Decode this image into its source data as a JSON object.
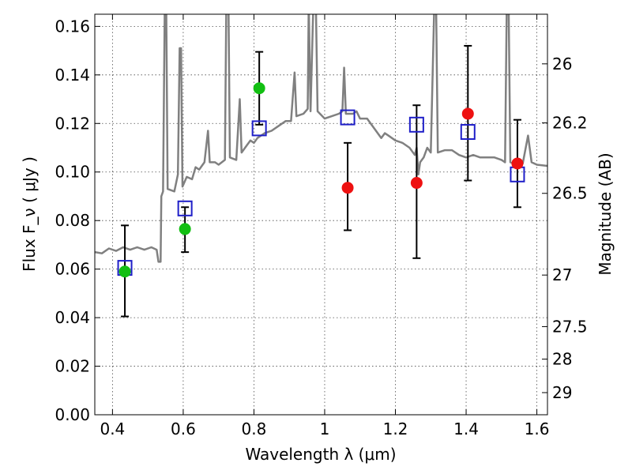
{
  "chart_data": {
    "type": "scatter",
    "xlabel": "Wavelength  λ (μm)",
    "ylabel": "Flux  F_ν  ( μJy )",
    "ylabel_right": "Magnitude (AB)",
    "xlim": [
      0.35,
      1.63
    ],
    "ylim": [
      0.0,
      0.165
    ],
    "grid": true,
    "x_ticks": [
      {
        "value": 0.4,
        "label": "0.4"
      },
      {
        "value": 0.6,
        "label": "0.6"
      },
      {
        "value": 0.8,
        "label": "0.8"
      },
      {
        "value": 1.0,
        "label": "1"
      },
      {
        "value": 1.2,
        "label": "1.2"
      },
      {
        "value": 1.4,
        "label": "1.4"
      },
      {
        "value": 1.6,
        "label": "1.6"
      }
    ],
    "y_ticks": [
      {
        "value": 0.0,
        "label": "0.00"
      },
      {
        "value": 0.02,
        "label": "0.02"
      },
      {
        "value": 0.04,
        "label": "0.04"
      },
      {
        "value": 0.06,
        "label": "0.06"
      },
      {
        "value": 0.08,
        "label": "0.08"
      },
      {
        "value": 0.1,
        "label": "0.10"
      },
      {
        "value": 0.12,
        "label": "0.12"
      },
      {
        "value": 0.14,
        "label": "0.14"
      },
      {
        "value": 0.16,
        "label": "0.16"
      }
    ],
    "right_ticks": [
      {
        "mag": 26,
        "label": "26"
      },
      {
        "mag": 26.2,
        "label": "26.2"
      },
      {
        "mag": 26.5,
        "label": "26.5"
      },
      {
        "mag": 27,
        "label": "27"
      },
      {
        "mag": 27.5,
        "label": "27.5"
      },
      {
        "mag": 28,
        "label": "28"
      },
      {
        "mag": 29,
        "label": "29"
      }
    ],
    "series": [
      {
        "role": "model-sed",
        "type": "line",
        "color": "#808080",
        "points": [
          [
            0.35,
            0.067
          ],
          [
            0.37,
            0.0665
          ],
          [
            0.39,
            0.0685
          ],
          [
            0.41,
            0.0675
          ],
          [
            0.43,
            0.069
          ],
          [
            0.45,
            0.068
          ],
          [
            0.47,
            0.069
          ],
          [
            0.49,
            0.068
          ],
          [
            0.51,
            0.069
          ],
          [
            0.525,
            0.068
          ],
          [
            0.53,
            0.063
          ],
          [
            0.536,
            0.063
          ],
          [
            0.538,
            0.09
          ],
          [
            0.543,
            0.092
          ],
          [
            0.548,
            0.17
          ],
          [
            0.552,
            0.17
          ],
          [
            0.556,
            0.093
          ],
          [
            0.575,
            0.092
          ],
          [
            0.585,
            0.099
          ],
          [
            0.59,
            0.151
          ],
          [
            0.594,
            0.151
          ],
          [
            0.598,
            0.094
          ],
          [
            0.61,
            0.098
          ],
          [
            0.625,
            0.097
          ],
          [
            0.635,
            0.102
          ],
          [
            0.645,
            0.101
          ],
          [
            0.66,
            0.104
          ],
          [
            0.67,
            0.117
          ],
          [
            0.675,
            0.104
          ],
          [
            0.69,
            0.104
          ],
          [
            0.7,
            0.103
          ],
          [
            0.718,
            0.105
          ],
          [
            0.722,
            0.17
          ],
          [
            0.728,
            0.17
          ],
          [
            0.732,
            0.106
          ],
          [
            0.75,
            0.105
          ],
          [
            0.76,
            0.13
          ],
          [
            0.765,
            0.108
          ],
          [
            0.78,
            0.111
          ],
          [
            0.79,
            0.113
          ],
          [
            0.8,
            0.112
          ],
          [
            0.81,
            0.114
          ],
          [
            0.83,
            0.116
          ],
          [
            0.85,
            0.117
          ],
          [
            0.87,
            0.119
          ],
          [
            0.89,
            0.121
          ],
          [
            0.905,
            0.121
          ],
          [
            0.915,
            0.141
          ],
          [
            0.92,
            0.123
          ],
          [
            0.94,
            0.124
          ],
          [
            0.952,
            0.126
          ],
          [
            0.955,
            0.17
          ],
          [
            0.96,
            0.125
          ],
          [
            0.968,
            0.17
          ],
          [
            0.975,
            0.17
          ],
          [
            0.98,
            0.125
          ],
          [
            1.0,
            0.122
          ],
          [
            1.02,
            0.123
          ],
          [
            1.04,
            0.124
          ],
          [
            1.05,
            0.125
          ],
          [
            1.055,
            0.143
          ],
          [
            1.06,
            0.124
          ],
          [
            1.08,
            0.124
          ],
          [
            1.09,
            0.125
          ],
          [
            1.1,
            0.122
          ],
          [
            1.12,
            0.122
          ],
          [
            1.14,
            0.118
          ],
          [
            1.16,
            0.114
          ],
          [
            1.17,
            0.116
          ],
          [
            1.18,
            0.115
          ],
          [
            1.2,
            0.113
          ],
          [
            1.22,
            0.112
          ],
          [
            1.24,
            0.11
          ],
          [
            1.255,
            0.107
          ],
          [
            1.26,
            0.11
          ],
          [
            1.265,
            0.099
          ],
          [
            1.27,
            0.104
          ],
          [
            1.28,
            0.106
          ],
          [
            1.29,
            0.11
          ],
          [
            1.3,
            0.108
          ],
          [
            1.31,
            0.17
          ],
          [
            1.315,
            0.17
          ],
          [
            1.32,
            0.108
          ],
          [
            1.34,
            0.109
          ],
          [
            1.36,
            0.109
          ],
          [
            1.38,
            0.107
          ],
          [
            1.4,
            0.106
          ],
          [
            1.42,
            0.107
          ],
          [
            1.44,
            0.106
          ],
          [
            1.46,
            0.106
          ],
          [
            1.48,
            0.106
          ],
          [
            1.5,
            0.105
          ],
          [
            1.51,
            0.104
          ],
          [
            1.515,
            0.17
          ],
          [
            1.52,
            0.17
          ],
          [
            1.525,
            0.104
          ],
          [
            1.54,
            0.103
          ],
          [
            1.56,
            0.1035
          ],
          [
            1.575,
            0.115
          ],
          [
            1.585,
            0.104
          ],
          [
            1.6,
            0.103
          ],
          [
            1.63,
            0.1025
          ]
        ]
      },
      {
        "role": "model-photometry",
        "type": "scatter",
        "marker": "open-square",
        "color": "#1f1fc8",
        "points": [
          [
            0.435,
            0.0605
          ],
          [
            0.605,
            0.085
          ],
          [
            0.815,
            0.118
          ],
          [
            1.065,
            0.1225
          ],
          [
            1.26,
            0.1195
          ],
          [
            1.405,
            0.1165
          ],
          [
            1.545,
            0.099
          ]
        ]
      },
      {
        "role": "observed-green",
        "type": "scatter",
        "marker": "filled-circle",
        "color": "#12bf12",
        "points": [
          {
            "x": 0.435,
            "y": 0.059,
            "lo": 0.0405,
            "hi": 0.078
          },
          {
            "x": 0.605,
            "y": 0.0765,
            "lo": 0.067,
            "hi": 0.0855
          },
          {
            "x": 0.815,
            "y": 0.1345,
            "lo": 0.1195,
            "hi": 0.1495
          }
        ]
      },
      {
        "role": "observed-red",
        "type": "scatter",
        "marker": "filled-circle",
        "color": "#ee1111",
        "points": [
          {
            "x": 1.065,
            "y": 0.0935,
            "lo": 0.076,
            "hi": 0.112
          },
          {
            "x": 1.26,
            "y": 0.0955,
            "lo": 0.0645,
            "hi": 0.1275
          },
          {
            "x": 1.405,
            "y": 0.124,
            "lo": 0.0965,
            "hi": 0.152
          },
          {
            "x": 1.545,
            "y": 0.1035,
            "lo": 0.0855,
            "hi": 0.1215
          }
        ]
      }
    ]
  }
}
